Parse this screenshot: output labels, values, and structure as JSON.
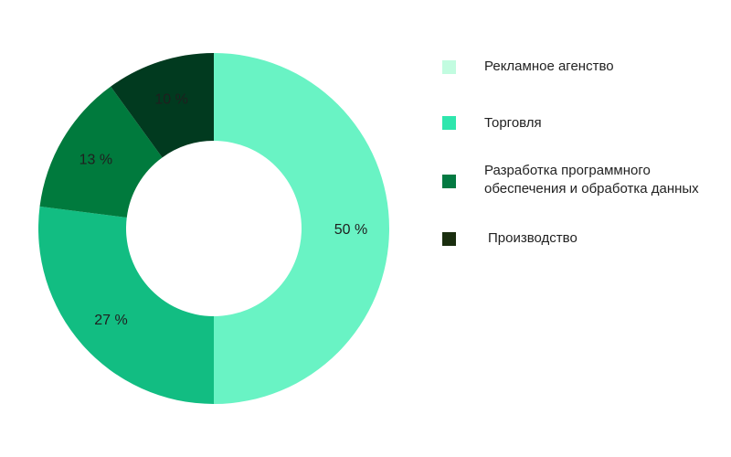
{
  "chart_data": {
    "type": "pie",
    "variant": "donut",
    "categories": [
      "Рекламное агенство",
      "Торговля",
      "Разработка программного\nобеспечения и обработка данных",
      "Производство"
    ],
    "values": [
      50,
      27,
      13,
      10
    ],
    "value_labels": [
      "50 %",
      "27 %",
      "13 %",
      "10 %"
    ],
    "colors": [
      "#69F3C4",
      "#12BD82",
      "#007A3D",
      "#013A1F"
    ],
    "legend_colors": [
      "#C2FCE0",
      "#2FE6AD",
      "#037A42",
      "#1A2E0F"
    ],
    "legend_position": "right",
    "title": ""
  }
}
